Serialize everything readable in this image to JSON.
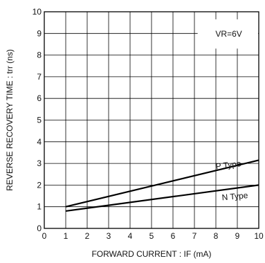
{
  "chart_data": {
    "type": "line",
    "title": "",
    "xlabel": "FORWARD  CURRENT : IF  (mA)",
    "ylabel": "REVERSE  RECOVERY  TIME : trr  (ns)",
    "xlim": [
      0,
      10
    ],
    "ylim": [
      0,
      10
    ],
    "x_ticks": [
      0,
      1,
      2,
      3,
      4,
      5,
      6,
      7,
      8,
      9,
      10
    ],
    "y_ticks": [
      0,
      1,
      2,
      3,
      4,
      5,
      6,
      7,
      8,
      9,
      10
    ],
    "grid": true,
    "annotation": "VR=6V",
    "series": [
      {
        "name": "P Type",
        "x": [
          1,
          10
        ],
        "y": [
          1.0,
          3.15
        ]
      },
      {
        "name": "N Type",
        "x": [
          1,
          10
        ],
        "y": [
          0.8,
          2.0
        ]
      }
    ]
  }
}
